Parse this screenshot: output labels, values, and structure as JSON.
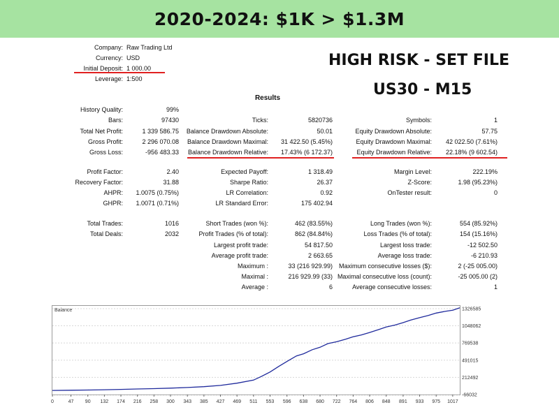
{
  "header": {
    "title": "2020-2024: $1K > $1.3M"
  },
  "headline": {
    "line1": "HIGH RISK - SET FILE",
    "line2": "US30 - M15"
  },
  "settings": [
    {
      "label": "Company:",
      "value": "Raw Trading Ltd"
    },
    {
      "label": "Currency:",
      "value": "USD"
    },
    {
      "label": "Initial Deposit:",
      "value": "1 000.00"
    },
    {
      "label": "Leverage:",
      "value": "1:500"
    }
  ],
  "results_title": "Results",
  "col1": [
    {
      "label": "History Quality:",
      "value": "99%"
    },
    {
      "label": "Bars:",
      "value": "97430"
    },
    {
      "label": "Total Net Profit:",
      "value": "1 339 586.75"
    },
    {
      "label": "Gross Profit:",
      "value": "2 296 070.08"
    },
    {
      "label": "Gross Loss:",
      "value": "-956 483.33"
    },
    {
      "label": "Profit Factor:",
      "value": "2.40"
    },
    {
      "label": "Recovery Factor:",
      "value": "31.88"
    },
    {
      "label": "AHPR:",
      "value": "1.0075 (0.75%)"
    },
    {
      "label": "GHPR:",
      "value": "1.0071 (0.71%)"
    },
    {
      "label": "Total Trades:",
      "value": "1016"
    },
    {
      "label": "Total Deals:",
      "value": "2032"
    }
  ],
  "col2": [
    {
      "label": "Ticks:",
      "value": "5820736"
    },
    {
      "label": "Balance Drawdown Absolute:",
      "value": "50.01"
    },
    {
      "label": "Balance Drawdown Maximal:",
      "value": "31 422.50 (5.45%)"
    },
    {
      "label": "Balance Drawdown Relative:",
      "value": "17.43% (6 172.37)"
    },
    {
      "label": "Expected Payoff:",
      "value": "1 318.49"
    },
    {
      "label": "Sharpe Ratio:",
      "value": "26.37"
    },
    {
      "label": "LR Correlation:",
      "value": "0.92"
    },
    {
      "label": "LR Standard Error:",
      "value": "175 402.94"
    },
    {
      "label": "Short Trades (won %):",
      "value": "462 (83.55%)"
    },
    {
      "label": "Profit Trades (% of total):",
      "value": "862 (84.84%)"
    },
    {
      "label": "Largest profit trade:",
      "value": "54 817.50"
    },
    {
      "label": "Average profit trade:",
      "value": "2 663.65"
    },
    {
      "label": "Maximum :",
      "value": "33 (216 929.99)"
    },
    {
      "label": "Maximal :",
      "value": "216 929.99 (33)"
    },
    {
      "label": "Average :",
      "value": "6"
    }
  ],
  "col3": [
    {
      "label": "Symbols:",
      "value": "1"
    },
    {
      "label": "Equity Drawdown Absolute:",
      "value": "57.75"
    },
    {
      "label": "Equity Drawdown Maximal:",
      "value": "42 022.50 (7.61%)"
    },
    {
      "label": "Equity Drawdown Relative:",
      "value": "22.18% (9 602.54)"
    },
    {
      "label": "Margin Level:",
      "value": "222.19%"
    },
    {
      "label": "Z-Score:",
      "value": "1.98 (95.23%)"
    },
    {
      "label": "OnTester result:",
      "value": "0"
    },
    {
      "label": "Long Trades (won %):",
      "value": "554 (85.92%)"
    },
    {
      "label": "Loss Trades (% of total):",
      "value": "154 (15.16%)"
    },
    {
      "label": "Largest loss trade:",
      "value": "-12 502.50"
    },
    {
      "label": "Average loss trade:",
      "value": "-6 210.93"
    },
    {
      "label": "Maximum consecutive losses ($):",
      "value": "2 (-25 005.00)"
    },
    {
      "label": "Maximal consecutive loss (count):",
      "value": "-25 005.00 (2)"
    },
    {
      "label": "Average consecutive losses:",
      "value": "1"
    }
  ],
  "colors": {
    "banner": "#a6e3a1",
    "underline": "#e02020",
    "balance_line": "#1f2a9c"
  },
  "chart_data": {
    "type": "line",
    "title": "Balance",
    "x_ticks": [
      0,
      47,
      90,
      132,
      174,
      216,
      258,
      300,
      343,
      385,
      427,
      469,
      511,
      553,
      596,
      638,
      680,
      722,
      764,
      806,
      848,
      891,
      933,
      975,
      1017
    ],
    "y_ticks": [
      "1326585",
      "1048062",
      "769538",
      "491015",
      "212492",
      "-66032"
    ],
    "y_tick_values": [
      1326585,
      1048062,
      769538,
      491015,
      212492,
      -66032
    ],
    "xlim": [
      0,
      1035
    ],
    "ylim": [
      -66032,
      1360000
    ],
    "series": [
      {
        "x": [
          0,
          47,
          90,
          132,
          174,
          216,
          258,
          300,
          343,
          385,
          427,
          469,
          511,
          530,
          553,
          575,
          596,
          620,
          638,
          660,
          680,
          700,
          722,
          745,
          764,
          785,
          806,
          830,
          848,
          870,
          891,
          910,
          933,
          955,
          975,
          1000,
          1017,
          1035
        ],
        "y": [
          1000,
          4000,
          8000,
          12000,
          18000,
          24000,
          30000,
          38000,
          48000,
          62000,
          82000,
          118000,
          168000,
          225000,
          300000,
          390000,
          470000,
          560000,
          595000,
          660000,
          700000,
          760000,
          790000,
          830000,
          870000,
          900000,
          940000,
          990000,
          1030000,
          1060000,
          1100000,
          1140000,
          1180000,
          1215000,
          1255000,
          1285000,
          1300000,
          1339586
        ]
      }
    ]
  }
}
